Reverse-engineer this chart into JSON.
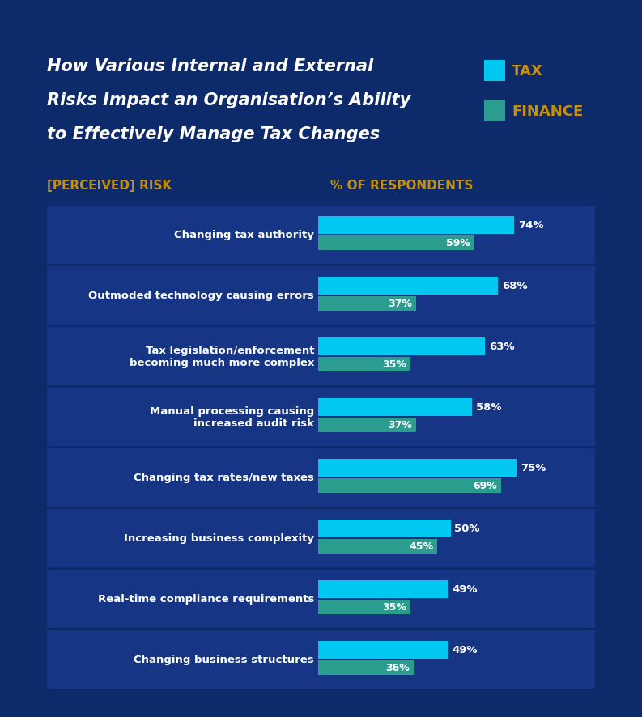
{
  "title_line1": "How Various Internal and External",
  "title_line2": "Risks Impact an Organisation’s Ability",
  "title_line3": "to Effectively Manage Tax Changes",
  "col_label_left": "[PERCEIVED] RISK",
  "col_label_right": "% OF RESPONDENTS",
  "background_color": "#0d2a6b",
  "bar_bg_color": "#163685",
  "tax_color": "#00c8f0",
  "finance_color": "#2a9d8f",
  "title_color": "#ffffff",
  "label_color": "#ffffff",
  "header_color": "#c8900a",
  "legend_label_color": "#c8900a",
  "categories": [
    "Changing tax authority",
    "Outmoded technology causing errors",
    "Tax legislation/enforcement\nbecoming much more complex",
    "Manual processing causing\nincreased audit risk",
    "Changing tax rates/new taxes",
    "Increasing business complexity",
    "Real-time compliance requirements",
    "Changing business structures"
  ],
  "tax_values": [
    74,
    68,
    63,
    58,
    75,
    50,
    49,
    49
  ],
  "finance_values": [
    59,
    37,
    35,
    37,
    69,
    45,
    35,
    36
  ],
  "figsize": [
    7.93,
    8.87
  ],
  "dpi": 100
}
